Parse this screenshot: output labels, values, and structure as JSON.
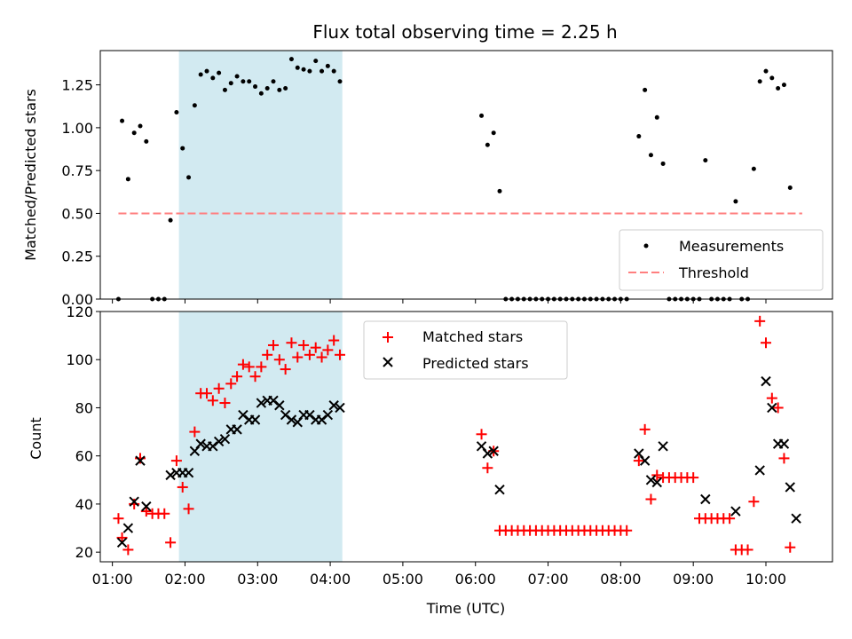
{
  "title": "Flux total observing time = 2.25 h",
  "colors": {
    "points": "#000000",
    "threshold": "#ff7f7f",
    "matched": "#ff0000",
    "predicted": "#000000",
    "shade": "#add8e6"
  },
  "chart_data": [
    {
      "type": "scatter",
      "ylabel": "Matched/Predicted stars",
      "ylim": [
        0,
        1.45
      ],
      "yticks": [
        "0.00",
        "0.25",
        "0.50",
        "0.75",
        "1.00",
        "1.25"
      ],
      "shaded_span": [
        "01:55",
        "04:10"
      ],
      "legend": {
        "position": "lower-right",
        "entries": [
          "Measurements",
          "Threshold"
        ]
      },
      "threshold": {
        "value": 0.5,
        "x_range": [
          "01:05",
          "10:30"
        ]
      },
      "series": [
        {
          "name": "Measurements",
          "points": [
            [
              "01:05",
              0.0
            ],
            [
              "01:08",
              1.04
            ],
            [
              "01:13",
              0.7
            ],
            [
              "01:18",
              0.97
            ],
            [
              "01:23",
              1.01
            ],
            [
              "01:28",
              0.92
            ],
            [
              "01:33",
              0.0
            ],
            [
              "01:38",
              0.0
            ],
            [
              "01:43",
              0.0
            ],
            [
              "01:48",
              0.46
            ],
            [
              "01:53",
              1.09
            ],
            [
              "01:58",
              0.88
            ],
            [
              "02:03",
              0.71
            ],
            [
              "02:08",
              1.13
            ],
            [
              "02:13",
              1.31
            ],
            [
              "02:18",
              1.33
            ],
            [
              "02:23",
              1.29
            ],
            [
              "02:28",
              1.32
            ],
            [
              "02:33",
              1.22
            ],
            [
              "02:38",
              1.26
            ],
            [
              "02:43",
              1.3
            ],
            [
              "02:48",
              1.27
            ],
            [
              "02:53",
              1.27
            ],
            [
              "02:58",
              1.24
            ],
            [
              "03:03",
              1.2
            ],
            [
              "03:08",
              1.23
            ],
            [
              "03:13",
              1.27
            ],
            [
              "03:18",
              1.22
            ],
            [
              "03:23",
              1.23
            ],
            [
              "03:28",
              1.4
            ],
            [
              "03:33",
              1.35
            ],
            [
              "03:38",
              1.34
            ],
            [
              "03:43",
              1.33
            ],
            [
              "03:48",
              1.39
            ],
            [
              "03:53",
              1.33
            ],
            [
              "03:58",
              1.36
            ],
            [
              "04:03",
              1.33
            ],
            [
              "04:08",
              1.27
            ],
            [
              "06:05",
              1.07
            ],
            [
              "06:10",
              0.9
            ],
            [
              "06:15",
              0.97
            ],
            [
              "06:20",
              0.63
            ],
            [
              "06:25",
              0.0
            ],
            [
              "06:30",
              0.0
            ],
            [
              "06:35",
              0.0
            ],
            [
              "06:40",
              0.0
            ],
            [
              "06:45",
              0.0
            ],
            [
              "06:50",
              0.0
            ],
            [
              "06:55",
              0.0
            ],
            [
              "07:00",
              0.0
            ],
            [
              "07:05",
              0.0
            ],
            [
              "07:10",
              0.0
            ],
            [
              "07:15",
              0.0
            ],
            [
              "07:20",
              0.0
            ],
            [
              "07:25",
              0.0
            ],
            [
              "07:30",
              0.0
            ],
            [
              "07:35",
              0.0
            ],
            [
              "07:40",
              0.0
            ],
            [
              "07:45",
              0.0
            ],
            [
              "07:50",
              0.0
            ],
            [
              "07:55",
              0.0
            ],
            [
              "08:00",
              0.0
            ],
            [
              "08:05",
              0.0
            ],
            [
              "08:15",
              0.95
            ],
            [
              "08:20",
              1.22
            ],
            [
              "08:25",
              0.84
            ],
            [
              "08:30",
              1.06
            ],
            [
              "08:35",
              0.79
            ],
            [
              "08:40",
              0.0
            ],
            [
              "08:45",
              0.0
            ],
            [
              "08:50",
              0.0
            ],
            [
              "08:55",
              0.0
            ],
            [
              "09:00",
              0.0
            ],
            [
              "09:05",
              0.0
            ],
            [
              "09:10",
              0.81
            ],
            [
              "09:15",
              0.0
            ],
            [
              "09:20",
              0.0
            ],
            [
              "09:25",
              0.0
            ],
            [
              "09:30",
              0.0
            ],
            [
              "09:35",
              0.57
            ],
            [
              "09:40",
              0.0
            ],
            [
              "09:45",
              0.0
            ],
            [
              "09:50",
              0.76
            ],
            [
              "09:55",
              1.27
            ],
            [
              "10:00",
              1.33
            ],
            [
              "10:05",
              1.29
            ],
            [
              "10:10",
              1.23
            ],
            [
              "10:15",
              1.25
            ],
            [
              "10:20",
              0.65
            ]
          ]
        }
      ]
    },
    {
      "type": "scatter",
      "xlabel": "Time (UTC)",
      "ylabel": "Count",
      "ylim": [
        16,
        120
      ],
      "yticks": [
        "20",
        "40",
        "60",
        "80",
        "100",
        "120"
      ],
      "xlim": [
        "00:50",
        "10:55"
      ],
      "xticks": [
        "01:00",
        "02:00",
        "03:00",
        "04:00",
        "05:00",
        "06:00",
        "07:00",
        "08:00",
        "09:00",
        "10:00"
      ],
      "shaded_span": [
        "01:55",
        "04:10"
      ],
      "legend": {
        "position": "top-center",
        "entries": [
          "Matched stars",
          "Predicted stars"
        ]
      },
      "series": [
        {
          "name": "Matched stars",
          "marker": "+",
          "points": [
            [
              "01:05",
              34
            ],
            [
              "01:08",
              26
            ],
            [
              "01:13",
              21
            ],
            [
              "01:18",
              40
            ],
            [
              "01:23",
              59
            ],
            [
              "01:28",
              37
            ],
            [
              "01:33",
              36
            ],
            [
              "01:38",
              36
            ],
            [
              "01:43",
              36
            ],
            [
              "01:48",
              24
            ],
            [
              "01:53",
              58
            ],
            [
              "01:58",
              47
            ],
            [
              "02:03",
              38
            ],
            [
              "02:08",
              70
            ],
            [
              "02:13",
              86
            ],
            [
              "02:18",
              86
            ],
            [
              "02:23",
              83
            ],
            [
              "02:28",
              88
            ],
            [
              "02:33",
              82
            ],
            [
              "02:38",
              90
            ],
            [
              "02:43",
              93
            ],
            [
              "02:48",
              98
            ],
            [
              "02:53",
              97
            ],
            [
              "02:58",
              93
            ],
            [
              "03:03",
              97
            ],
            [
              "03:08",
              102
            ],
            [
              "03:13",
              106
            ],
            [
              "03:18",
              100
            ],
            [
              "03:23",
              96
            ],
            [
              "03:28",
              107
            ],
            [
              "03:33",
              101
            ],
            [
              "03:38",
              106
            ],
            [
              "03:43",
              102
            ],
            [
              "03:48",
              105
            ],
            [
              "03:53",
              101
            ],
            [
              "03:58",
              104
            ],
            [
              "04:03",
              108
            ],
            [
              "04:08",
              102
            ],
            [
              "06:05",
              69
            ],
            [
              "06:10",
              55
            ],
            [
              "06:15",
              62
            ],
            [
              "06:20",
              29
            ],
            [
              "06:25",
              29
            ],
            [
              "06:30",
              29
            ],
            [
              "06:35",
              29
            ],
            [
              "06:40",
              29
            ],
            [
              "06:45",
              29
            ],
            [
              "06:50",
              29
            ],
            [
              "06:55",
              29
            ],
            [
              "07:00",
              29
            ],
            [
              "07:05",
              29
            ],
            [
              "07:10",
              29
            ],
            [
              "07:15",
              29
            ],
            [
              "07:20",
              29
            ],
            [
              "07:25",
              29
            ],
            [
              "07:30",
              29
            ],
            [
              "07:35",
              29
            ],
            [
              "07:40",
              29
            ],
            [
              "07:45",
              29
            ],
            [
              "07:50",
              29
            ],
            [
              "07:55",
              29
            ],
            [
              "08:00",
              29
            ],
            [
              "08:05",
              29
            ],
            [
              "08:15",
              58
            ],
            [
              "08:20",
              71
            ],
            [
              "08:25",
              42
            ],
            [
              "08:30",
              52
            ],
            [
              "08:35",
              51
            ],
            [
              "08:40",
              51
            ],
            [
              "08:45",
              51
            ],
            [
              "08:50",
              51
            ],
            [
              "08:55",
              51
            ],
            [
              "09:00",
              51
            ],
            [
              "09:05",
              34
            ],
            [
              "09:10",
              34
            ],
            [
              "09:15",
              34
            ],
            [
              "09:20",
              34
            ],
            [
              "09:25",
              34
            ],
            [
              "09:30",
              34
            ],
            [
              "09:35",
              21
            ],
            [
              "09:40",
              21
            ],
            [
              "09:45",
              21
            ],
            [
              "09:50",
              41
            ],
            [
              "09:55",
              116
            ],
            [
              "10:00",
              107
            ],
            [
              "10:05",
              84
            ],
            [
              "10:10",
              80
            ],
            [
              "10:15",
              59
            ],
            [
              "10:20",
              22
            ]
          ]
        },
        {
          "name": "Predicted stars",
          "marker": "x",
          "points": [
            [
              "01:08",
              24
            ],
            [
              "01:13",
              30
            ],
            [
              "01:18",
              41
            ],
            [
              "01:23",
              58
            ],
            [
              "01:28",
              39
            ],
            [
              "01:48",
              52
            ],
            [
              "01:53",
              53
            ],
            [
              "01:58",
              53
            ],
            [
              "02:03",
              53
            ],
            [
              "02:08",
              62
            ],
            [
              "02:13",
              65
            ],
            [
              "02:18",
              64
            ],
            [
              "02:23",
              64
            ],
            [
              "02:28",
              66
            ],
            [
              "02:33",
              67
            ],
            [
              "02:38",
              71
            ],
            [
              "02:43",
              71
            ],
            [
              "02:48",
              77
            ],
            [
              "02:53",
              75
            ],
            [
              "02:58",
              75
            ],
            [
              "03:03",
              82
            ],
            [
              "03:08",
              83
            ],
            [
              "03:13",
              83
            ],
            [
              "03:18",
              81
            ],
            [
              "03:23",
              77
            ],
            [
              "03:28",
              75
            ],
            [
              "03:33",
              74
            ],
            [
              "03:38",
              77
            ],
            [
              "03:43",
              77
            ],
            [
              "03:48",
              75
            ],
            [
              "03:53",
              75
            ],
            [
              "03:58",
              77
            ],
            [
              "04:03",
              81
            ],
            [
              "04:08",
              80
            ],
            [
              "06:05",
              64
            ],
            [
              "06:10",
              61
            ],
            [
              "06:15",
              62
            ],
            [
              "06:20",
              46
            ],
            [
              "08:15",
              61
            ],
            [
              "08:20",
              58
            ],
            [
              "08:25",
              50
            ],
            [
              "08:30",
              49
            ],
            [
              "08:35",
              64
            ],
            [
              "09:10",
              42
            ],
            [
              "09:35",
              37
            ],
            [
              "09:55",
              54
            ],
            [
              "10:00",
              91
            ],
            [
              "10:05",
              80
            ],
            [
              "10:10",
              65
            ],
            [
              "10:15",
              65
            ],
            [
              "10:20",
              47
            ],
            [
              "10:25",
              34
            ]
          ]
        }
      ]
    }
  ]
}
